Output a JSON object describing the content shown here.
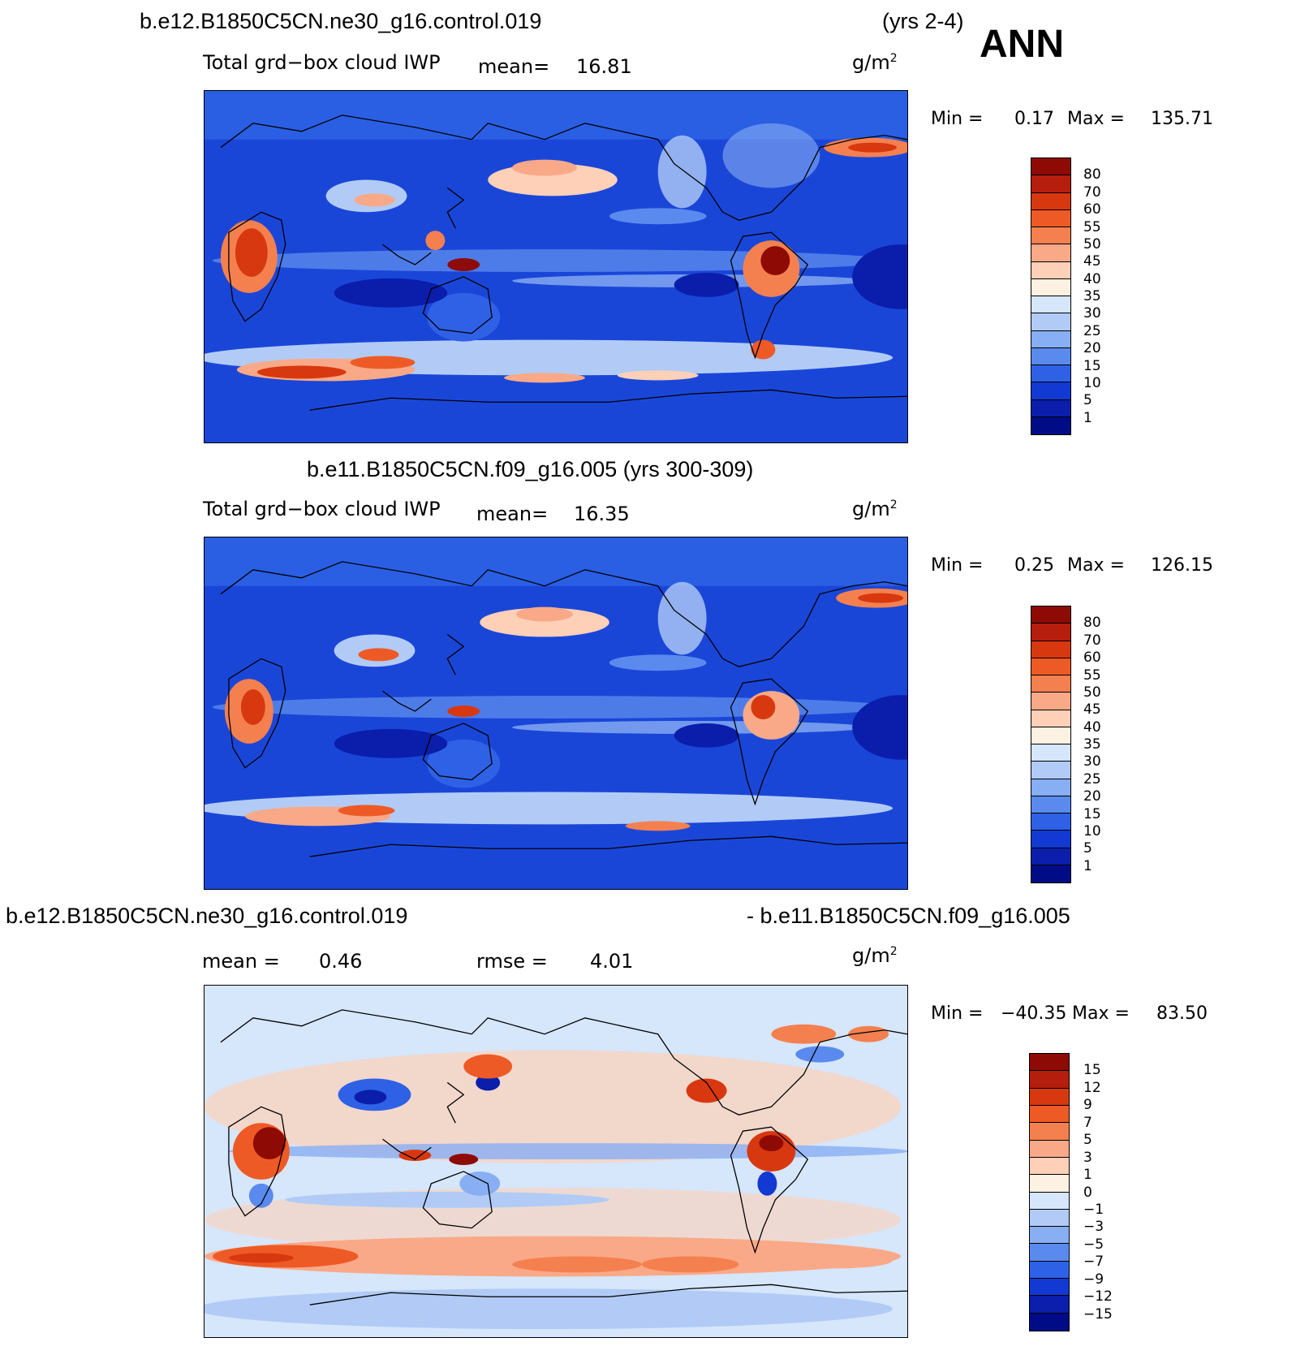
{
  "header": {
    "case1": "b.e12.B1850C5CN.ne30_g16.control.019",
    "yrs1": "(yrs 2-4)",
    "season": "ANN"
  },
  "panel1": {
    "variable": "Total grd−box cloud IWP",
    "mean_label": "mean=",
    "mean_value": "16.81",
    "units": "g/m",
    "units_exp": "2",
    "min_label": "Min =",
    "min_value": "0.17",
    "max_label": "Max =",
    "max_value": "135.71"
  },
  "panel2": {
    "title": "b.e11.B1850C5CN.f09_g16.005 (yrs 300-309)",
    "variable": "Total grd−box cloud IWP",
    "mean_label": "mean=",
    "mean_value": "16.35",
    "units": "g/m",
    "units_exp": "2",
    "min_label": "Min =",
    "min_value": "0.25",
    "max_label": "Max =",
    "max_value": "126.15"
  },
  "panel3": {
    "title_left": "b.e12.B1850C5CN.ne30_g16.control.019",
    "title_right": "- b.e11.B1850C5CN.f09_g16.005",
    "mean_label": "mean =",
    "mean_value": "0.46",
    "rmse_label": "rmse =",
    "rmse_value": "4.01",
    "units": "g/m",
    "units_exp": "2",
    "min_label": "Min =",
    "min_value": "−40.35",
    "max_label": "Max =",
    "max_value": "83.50"
  },
  "colorbar_abs": {
    "labels": [
      "80",
      "70",
      "60",
      "55",
      "50",
      "45",
      "40",
      "35",
      "30",
      "25",
      "20",
      "15",
      "10",
      "5",
      "1"
    ],
    "colors": [
      "#8e0a05",
      "#b51d0d",
      "#d8380f",
      "#ee5a25",
      "#f5804f",
      "#f9a987",
      "#fdd0b7",
      "#fdf1e3",
      "#d6e6fb",
      "#b1cbf6",
      "#88aef3",
      "#5a8aee",
      "#2f61e6",
      "#1239d2",
      "#0a1eab",
      "#000c86"
    ]
  },
  "colorbar_diff": {
    "labels": [
      "15",
      "12",
      "9",
      "7",
      "5",
      "3",
      "1",
      "0",
      "−1",
      "−3",
      "−5",
      "−7",
      "−9",
      "−12",
      "−15"
    ],
    "colors": [
      "#8e0a05",
      "#b51d0d",
      "#d8380f",
      "#ee5a25",
      "#f5804f",
      "#f9a987",
      "#fdd0b7",
      "#fdf1e3",
      "#d6e6fb",
      "#b1cbf6",
      "#88aef3",
      "#5a8aee",
      "#2f61e6",
      "#1239d2",
      "#0a1eab",
      "#000c86"
    ]
  }
}
